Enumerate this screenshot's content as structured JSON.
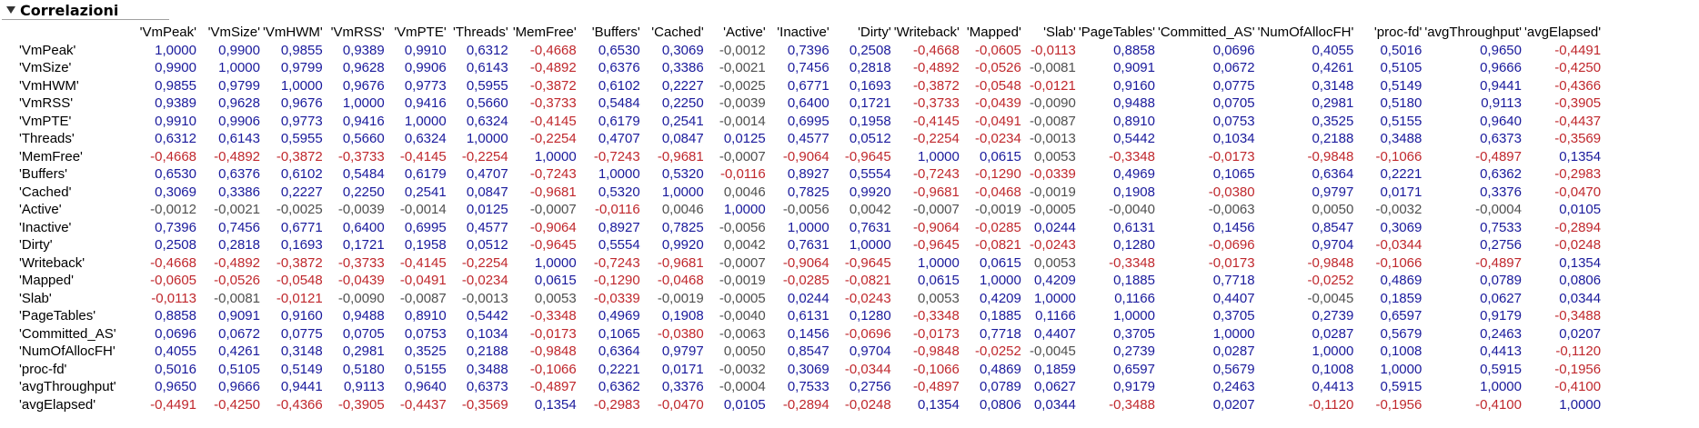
{
  "title": "Correlazioni",
  "columns": [
    "'VmPeak'",
    "'VmSize'",
    "'VmHWM'",
    "'VmRSS'",
    "'VmPTE'",
    "'Threads'",
    "'MemFree'",
    "'Buffers'",
    "'Cached'",
    "'Active'",
    "'Inactive'",
    "'Dirty'",
    "'Writeback'",
    "'Mapped'",
    "'Slab'",
    "'PageTables'",
    "'Committed_AS'",
    "'NumOfAllocFH'",
    "'proc-fd'",
    "'avgThroughput'",
    "'avgElapsed'"
  ],
  "rows": [
    {
      "label": "'VmPeak'",
      "values": [
        "1,0000",
        "0,9900",
        "0,9855",
        "0,9389",
        "0,9910",
        "0,6312",
        "-0,4668",
        "0,6530",
        "0,3069",
        "-0,0012",
        "0,7396",
        "0,2508",
        "-0,4668",
        "-0,0605",
        "-0,0113",
        "0,8858",
        "0,0696",
        "0,4055",
        "0,5016",
        "0,9650",
        "-0,4491"
      ]
    },
    {
      "label": "'VmSize'",
      "values": [
        "0,9900",
        "1,0000",
        "0,9799",
        "0,9628",
        "0,9906",
        "0,6143",
        "-0,4892",
        "0,6376",
        "0,3386",
        "-0,0021",
        "0,7456",
        "0,2818",
        "-0,4892",
        "-0,0526",
        "-0,0081",
        "0,9091",
        "0,0672",
        "0,4261",
        "0,5105",
        "0,9666",
        "-0,4250"
      ]
    },
    {
      "label": "'VmHWM'",
      "values": [
        "0,9855",
        "0,9799",
        "1,0000",
        "0,9676",
        "0,9773",
        "0,5955",
        "-0,3872",
        "0,6102",
        "0,2227",
        "-0,0025",
        "0,6771",
        "0,1693",
        "-0,3872",
        "-0,0548",
        "-0,0121",
        "0,9160",
        "0,0775",
        "0,3148",
        "0,5149",
        "0,9441",
        "-0,4366"
      ]
    },
    {
      "label": "'VmRSS'",
      "values": [
        "0,9389",
        "0,9628",
        "0,9676",
        "1,0000",
        "0,9416",
        "0,5660",
        "-0,3733",
        "0,5484",
        "0,2250",
        "-0,0039",
        "0,6400",
        "0,1721",
        "-0,3733",
        "-0,0439",
        "-0,0090",
        "0,9488",
        "0,0705",
        "0,2981",
        "0,5180",
        "0,9113",
        "-0,3905"
      ]
    },
    {
      "label": "'VmPTE'",
      "values": [
        "0,9910",
        "0,9906",
        "0,9773",
        "0,9416",
        "1,0000",
        "0,6324",
        "-0,4145",
        "0,6179",
        "0,2541",
        "-0,0014",
        "0,6995",
        "0,1958",
        "-0,4145",
        "-0,0491",
        "-0,0087",
        "0,8910",
        "0,0753",
        "0,3525",
        "0,5155",
        "0,9640",
        "-0,4437"
      ]
    },
    {
      "label": "'Threads'",
      "values": [
        "0,6312",
        "0,6143",
        "0,5955",
        "0,5660",
        "0,6324",
        "1,0000",
        "-0,2254",
        "0,4707",
        "0,0847",
        "0,0125",
        "0,4577",
        "0,0512",
        "-0,2254",
        "-0,0234",
        "-0,0013",
        "0,5442",
        "0,1034",
        "0,2188",
        "0,3488",
        "0,6373",
        "-0,3569"
      ]
    },
    {
      "label": "'MemFree'",
      "values": [
        "-0,4668",
        "-0,4892",
        "-0,3872",
        "-0,3733",
        "-0,4145",
        "-0,2254",
        "1,0000",
        "-0,7243",
        "-0,9681",
        "-0,0007",
        "-0,9064",
        "-0,9645",
        "1,0000",
        "0,0615",
        "0,0053",
        "-0,3348",
        "-0,0173",
        "-0,9848",
        "-0,1066",
        "-0,4897",
        "0,1354"
      ]
    },
    {
      "label": "'Buffers'",
      "values": [
        "0,6530",
        "0,6376",
        "0,6102",
        "0,5484",
        "0,6179",
        "0,4707",
        "-0,7243",
        "1,0000",
        "0,5320",
        "-0,0116",
        "0,8927",
        "0,5554",
        "-0,7243",
        "-0,1290",
        "-0,0339",
        "0,4969",
        "0,1065",
        "0,6364",
        "0,2221",
        "0,6362",
        "-0,2983"
      ]
    },
    {
      "label": "'Cached'",
      "values": [
        "0,3069",
        "0,3386",
        "0,2227",
        "0,2250",
        "0,2541",
        "0,0847",
        "-0,9681",
        "0,5320",
        "1,0000",
        "0,0046",
        "0,7825",
        "0,9920",
        "-0,9681",
        "-0,0468",
        "-0,0019",
        "0,1908",
        "-0,0380",
        "0,9797",
        "0,0171",
        "0,3376",
        "-0,0470"
      ]
    },
    {
      "label": "'Active'",
      "values": [
        "-0,0012",
        "-0,0021",
        "-0,0025",
        "-0,0039",
        "-0,0014",
        "0,0125",
        "-0,0007",
        "-0,0116",
        "0,0046",
        "1,0000",
        "-0,0056",
        "0,0042",
        "-0,0007",
        "-0,0019",
        "-0,0005",
        "-0,0040",
        "-0,0063",
        "0,0050",
        "-0,0032",
        "-0,0004",
        "0,0105"
      ]
    },
    {
      "label": "'Inactive'",
      "values": [
        "0,7396",
        "0,7456",
        "0,6771",
        "0,6400",
        "0,6995",
        "0,4577",
        "-0,9064",
        "0,8927",
        "0,7825",
        "-0,0056",
        "1,0000",
        "0,7631",
        "-0,9064",
        "-0,0285",
        "0,0244",
        "0,6131",
        "0,1456",
        "0,8547",
        "0,3069",
        "0,7533",
        "-0,2894"
      ]
    },
    {
      "label": "'Dirty'",
      "values": [
        "0,2508",
        "0,2818",
        "0,1693",
        "0,1721",
        "0,1958",
        "0,0512",
        "-0,9645",
        "0,5554",
        "0,9920",
        "0,0042",
        "0,7631",
        "1,0000",
        "-0,9645",
        "-0,0821",
        "-0,0243",
        "0,1280",
        "-0,0696",
        "0,9704",
        "-0,0344",
        "0,2756",
        "-0,0248"
      ]
    },
    {
      "label": "'Writeback'",
      "values": [
        "-0,4668",
        "-0,4892",
        "-0,3872",
        "-0,3733",
        "-0,4145",
        "-0,2254",
        "1,0000",
        "-0,7243",
        "-0,9681",
        "-0,0007",
        "-0,9064",
        "-0,9645",
        "1,0000",
        "0,0615",
        "0,0053",
        "-0,3348",
        "-0,0173",
        "-0,9848",
        "-0,1066",
        "-0,4897",
        "0,1354"
      ]
    },
    {
      "label": "'Mapped'",
      "values": [
        "-0,0605",
        "-0,0526",
        "-0,0548",
        "-0,0439",
        "-0,0491",
        "-0,0234",
        "0,0615",
        "-0,1290",
        "-0,0468",
        "-0,0019",
        "-0,0285",
        "-0,0821",
        "0,0615",
        "1,0000",
        "0,4209",
        "0,1885",
        "0,7718",
        "-0,0252",
        "0,4869",
        "0,0789",
        "0,0806"
      ]
    },
    {
      "label": "'Slab'",
      "values": [
        "-0,0113",
        "-0,0081",
        "-0,0121",
        "-0,0090",
        "-0,0087",
        "-0,0013",
        "0,0053",
        "-0,0339",
        "-0,0019",
        "-0,0005",
        "0,0244",
        "-0,0243",
        "0,0053",
        "0,4209",
        "1,0000",
        "0,1166",
        "0,4407",
        "-0,0045",
        "0,1859",
        "0,0627",
        "0,0344"
      ]
    },
    {
      "label": "'PageTables'",
      "values": [
        "0,8858",
        "0,9091",
        "0,9160",
        "0,9488",
        "0,8910",
        "0,5442",
        "-0,3348",
        "0,4969",
        "0,1908",
        "-0,0040",
        "0,6131",
        "0,1280",
        "-0,3348",
        "0,1885",
        "0,1166",
        "1,0000",
        "0,3705",
        "0,2739",
        "0,6597",
        "0,9179",
        "-0,3488"
      ]
    },
    {
      "label": "'Committed_AS'",
      "values": [
        "0,0696",
        "0,0672",
        "0,0775",
        "0,0705",
        "0,0753",
        "0,1034",
        "-0,0173",
        "0,1065",
        "-0,0380",
        "-0,0063",
        "0,1456",
        "-0,0696",
        "-0,0173",
        "0,7718",
        "0,4407",
        "0,3705",
        "1,0000",
        "0,0287",
        "0,5679",
        "0,2463",
        "0,0207"
      ]
    },
    {
      "label": "'NumOfAllocFH'",
      "values": [
        "0,4055",
        "0,4261",
        "0,3148",
        "0,2981",
        "0,3525",
        "0,2188",
        "-0,9848",
        "0,6364",
        "0,9797",
        "0,0050",
        "0,8547",
        "0,9704",
        "-0,9848",
        "-0,0252",
        "-0,0045",
        "0,2739",
        "0,0287",
        "1,0000",
        "0,1008",
        "0,4413",
        "-0,1120"
      ]
    },
    {
      "label": "'proc-fd'",
      "values": [
        "0,5016",
        "0,5105",
        "0,5149",
        "0,5180",
        "0,5155",
        "0,3488",
        "-0,1066",
        "0,2221",
        "0,0171",
        "-0,0032",
        "0,3069",
        "-0,0344",
        "-0,1066",
        "0,4869",
        "0,1859",
        "0,6597",
        "0,5679",
        "0,1008",
        "1,0000",
        "0,5915",
        "-0,1956"
      ]
    },
    {
      "label": "'avgThroughput'",
      "values": [
        "0,9650",
        "0,9666",
        "0,9441",
        "0,9113",
        "0,9640",
        "0,6373",
        "-0,4897",
        "0,6362",
        "0,3376",
        "-0,0004",
        "0,7533",
        "0,2756",
        "-0,4897",
        "0,0789",
        "0,0627",
        "0,9179",
        "0,2463",
        "0,4413",
        "0,5915",
        "1,0000",
        "-0,4100"
      ]
    },
    {
      "label": "'avgElapsed'",
      "values": [
        "-0,4491",
        "-0,4250",
        "-0,4366",
        "-0,3905",
        "-0,4437",
        "-0,3569",
        "0,1354",
        "-0,2983",
        "-0,0470",
        "0,0105",
        "-0,2894",
        "-0,0248",
        "0,1354",
        "0,0806",
        "0,0344",
        "-0,3488",
        "0,0207",
        "-0,1120",
        "-0,1956",
        "-0,4100",
        "1,0000"
      ]
    }
  ]
}
